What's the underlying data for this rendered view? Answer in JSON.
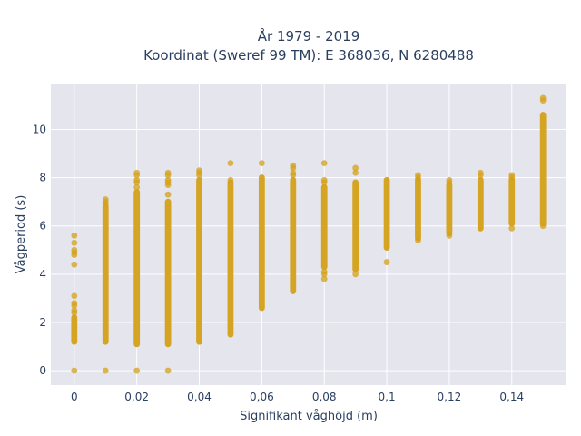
{
  "chart_data": {
    "type": "scatter",
    "title_lines": [
      "År 1979 - 2019",
      "Koordinat (Sweref 99 TM): E 368036, N 6280488"
    ],
    "xlabel": "Signifikant våghöjd (m)",
    "ylabel": "Vågperiod (s)",
    "xlim": [
      -0.0075,
      0.1575
    ],
    "ylim": [
      -0.6,
      11.9
    ],
    "x_ticks": [
      {
        "value": 0,
        "label": "0"
      },
      {
        "value": 0.02,
        "label": "0,02"
      },
      {
        "value": 0.04,
        "label": "0,04"
      },
      {
        "value": 0.06,
        "label": "0,06"
      },
      {
        "value": 0.08,
        "label": "0,08"
      },
      {
        "value": 0.1,
        "label": "0,1"
      },
      {
        "value": 0.12,
        "label": "0,12"
      },
      {
        "value": 0.14,
        "label": "0,14"
      }
    ],
    "y_ticks": [
      {
        "value": 0,
        "label": "0"
      },
      {
        "value": 2,
        "label": "2"
      },
      {
        "value": 4,
        "label": "4"
      },
      {
        "value": 6,
        "label": "6"
      },
      {
        "value": 8,
        "label": "8"
      },
      {
        "value": 10,
        "label": "10"
      }
    ],
    "grid": true,
    "marker_color": "#d4a017",
    "plot_bg": "#e5e5ee",
    "grid_color": "#ffffff",
    "columns": [
      {
        "x": 0.0,
        "min": 1.2,
        "max": 2.2,
        "outliers": [
          0.0,
          2.4,
          2.5,
          2.7,
          2.8,
          3.1,
          4.4,
          4.8,
          4.9,
          5.0,
          5.3,
          5.6
        ]
      },
      {
        "x": 0.01,
        "min": 1.2,
        "max": 6.8,
        "outliers": [
          0.0,
          6.9,
          7.0,
          7.1
        ]
      },
      {
        "x": 0.02,
        "min": 1.1,
        "max": 7.4,
        "outliers": [
          0.0,
          7.6,
          7.8,
          7.9,
          8.1,
          8.2
        ]
      },
      {
        "x": 0.03,
        "min": 1.1,
        "max": 7.0,
        "outliers": [
          0.0,
          7.3,
          7.7,
          7.8,
          7.9,
          8.1,
          8.2
        ]
      },
      {
        "x": 0.04,
        "min": 1.2,
        "max": 7.9,
        "outliers": [
          8.1,
          8.2,
          8.3
        ]
      },
      {
        "x": 0.05,
        "min": 1.5,
        "max": 7.8,
        "outliers": [
          7.9,
          8.6
        ]
      },
      {
        "x": 0.06,
        "min": 2.6,
        "max": 8.0,
        "outliers": [
          8.6
        ]
      },
      {
        "x": 0.07,
        "min": 3.3,
        "max": 7.9,
        "outliers": [
          8.1,
          8.2,
          8.4,
          8.5
        ]
      },
      {
        "x": 0.08,
        "min": 4.3,
        "max": 7.6,
        "outliers": [
          3.8,
          4.0,
          4.1,
          7.8,
          7.9,
          8.6
        ]
      },
      {
        "x": 0.09,
        "min": 4.2,
        "max": 7.8,
        "outliers": [
          4.0,
          8.2,
          8.4
        ]
      },
      {
        "x": 0.1,
        "min": 5.1,
        "max": 7.9,
        "outliers": [
          4.5
        ]
      },
      {
        "x": 0.11,
        "min": 5.5,
        "max": 7.9,
        "outliers": [
          5.4,
          8.0,
          8.1
        ]
      },
      {
        "x": 0.12,
        "min": 5.7,
        "max": 7.7,
        "outliers": [
          5.6,
          7.8,
          7.9
        ]
      },
      {
        "x": 0.13,
        "min": 5.9,
        "max": 7.9,
        "outliers": [
          8.1,
          8.2
        ]
      },
      {
        "x": 0.14,
        "min": 6.1,
        "max": 7.9,
        "outliers": [
          5.9,
          8.0,
          8.1
        ]
      },
      {
        "x": 0.15,
        "min": 6.1,
        "max": 10.6,
        "outliers": [
          6.0,
          11.2,
          11.3
        ]
      }
    ]
  }
}
